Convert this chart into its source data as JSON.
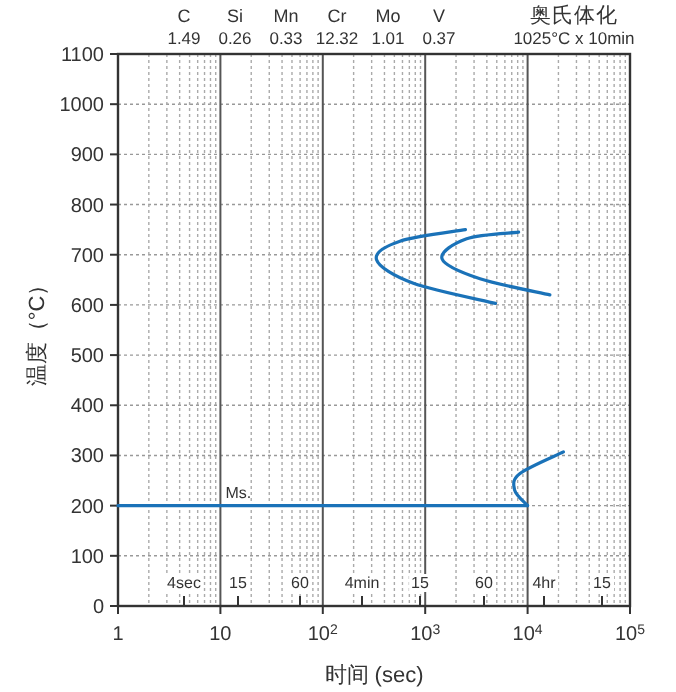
{
  "chart_data": {
    "type": "line",
    "ylabel": "温度（°C）",
    "xlabel": "时间 (sec)",
    "log": "x",
    "xlim": [
      1,
      100000
    ],
    "xticks": [
      1,
      10,
      {
        "value": 100,
        "label": "10$^{2}$"
      },
      {
        "value": 1000,
        "label": "10$^{3}$"
      },
      {
        "value": 10000,
        "label": "10$^{4}$"
      },
      {
        "value": 100000,
        "label": "10$^{5}$"
      }
    ],
    "ylim": [
      0,
      1100
    ],
    "yticks": [
      0,
      100,
      200,
      300,
      400,
      500,
      600,
      700,
      800,
      900,
      1000,
      1100
    ],
    "grid": true,
    "marker": "none",
    "line_style": "solid",
    "series": [
      {
        "color": "#1a72b8",
        "x": [
          1,
          10000
        ],
        "values": [
          200,
          200
        ]
      },
      {
        "color": "#1a72b8",
        "x": [
          2470,
          567,
          335,
          767,
          4850
        ],
        "values": [
          750,
          727,
          690,
          643,
          603
        ]
      },
      {
        "color": "#1a72b8",
        "x": [
          8170,
          2540,
          1460,
          3430,
          16500
        ],
        "values": [
          745,
          732,
          692,
          652,
          620
        ]
      },
      {
        "color": "#1a72b8",
        "x": [
          10000,
          7470,
          8430,
          22400
        ],
        "values": [
          200,
          231,
          264,
          307
        ]
      }
    ],
    "annotations": [
      "C",
      "1.49",
      "Si",
      "0.26",
      "Mn",
      "0.33",
      "Cr",
      "12.32",
      "Mo",
      "1.01",
      "V",
      "0.37",
      "奥氏体化",
      "1025°C x 10min",
      {
        "text": "Ms.",
        "x": 15,
        "y": 200
      },
      "4sec",
      "15",
      "60",
      "4min",
      "15",
      "60",
      "4hr",
      "15"
    ]
  }
}
